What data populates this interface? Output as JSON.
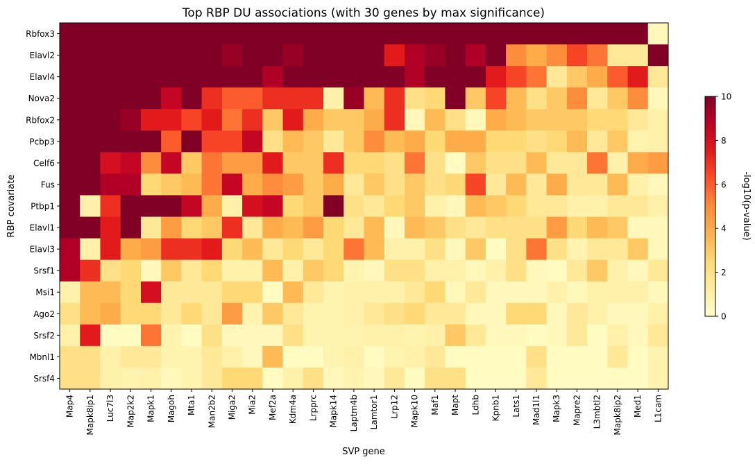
{
  "chart_data": {
    "type": "heatmap",
    "title": "Top RBP DU associations (with 30 genes by max significance)",
    "xlabel": "SVP gene",
    "ylabel": "RBP covariate",
    "colorbar_label": "-log10(p-value)",
    "colorbar_ticks": [
      0,
      2,
      4,
      6,
      8,
      10
    ],
    "vmin": 0,
    "vmax": 10,
    "colormap": "YlOrRd",
    "x_categories": [
      "Map4",
      "Mapk8ip1",
      "Luc7l3",
      "Map2k2",
      "Mapk1",
      "Magoh",
      "Mta1",
      "Man2b2",
      "Miga2",
      "Mia2",
      "Mef2a",
      "Kdm4a",
      "Lrpprc",
      "Mapk14",
      "Laptm4b",
      "Lamtor1",
      "Lrp12",
      "Mapk10",
      "Maf1",
      "Mapt",
      "Ldhb",
      "Kpnb1",
      "Lats1",
      "Mad1l1",
      "Mapk3",
      "Mapre2",
      "L3mbtl2",
      "Mapk8ip2",
      "Med1",
      "L1cam"
    ],
    "y_categories": [
      "Rbfox3",
      "Elavl2",
      "Elavl4",
      "Nova2",
      "Rbfox2",
      "Pcbp3",
      "Celf6",
      "Fus",
      "Ptbp1",
      "Elavl1",
      "Elavl3",
      "Srsf1",
      "Msi1",
      "Ago2",
      "Srsf2",
      "Mbnl1",
      "Srsf4"
    ],
    "values": [
      [
        10,
        10,
        10,
        10,
        10,
        10,
        10,
        10,
        10,
        10,
        10,
        10,
        10,
        10,
        10,
        10,
        10,
        10,
        10,
        10,
        10,
        10,
        10,
        10,
        10,
        10,
        10,
        10,
        10,
        0.5
      ],
      [
        10,
        10,
        10,
        10,
        10,
        10,
        10,
        10,
        9.5,
        10,
        10,
        9.5,
        10,
        10,
        10,
        10,
        7.5,
        9,
        9.5,
        10,
        9,
        10,
        5,
        4,
        5,
        6.5,
        5.5,
        1.5,
        1.5,
        10
      ],
      [
        10,
        10,
        10,
        10,
        10,
        10,
        10,
        10,
        10,
        10,
        9,
        10,
        10,
        10,
        10,
        10,
        10,
        9,
        10,
        10,
        10,
        7.5,
        6.5,
        5.5,
        1.5,
        3,
        4,
        6,
        7.5,
        1.5
      ],
      [
        10,
        10,
        10,
        10,
        10,
        8.5,
        10,
        7,
        6,
        6,
        7,
        7,
        7,
        1,
        9.5,
        3.5,
        7,
        2,
        2.5,
        10,
        3,
        6.5,
        3.5,
        2,
        3,
        5,
        1.5,
        3,
        5,
        0.5
      ],
      [
        10,
        10,
        10,
        9.5,
        7.5,
        7.5,
        6.5,
        7.5,
        5.5,
        7,
        3,
        7.5,
        4,
        3,
        3,
        4,
        7,
        0.5,
        3.5,
        2,
        0.5,
        4,
        3.5,
        3,
        3,
        3,
        2.5,
        2.5,
        1.5,
        1
      ],
      [
        10,
        10,
        10,
        10,
        10,
        6,
        10,
        6.5,
        6.5,
        8.5,
        2,
        3.5,
        3,
        1.5,
        3,
        5,
        3.5,
        4,
        2.5,
        4,
        4,
        2.5,
        2.5,
        2,
        2.5,
        3.5,
        1.5,
        3,
        0.8,
        1
      ],
      [
        10,
        10,
        8,
        8.5,
        5,
        8.5,
        3,
        5.5,
        4.5,
        4.5,
        7.5,
        3,
        3,
        7,
        2.5,
        2.5,
        2,
        5.5,
        2,
        0.3,
        3,
        2,
        2,
        3.5,
        1.5,
        1.5,
        5.5,
        1,
        4,
        4.5
      ],
      [
        10,
        10,
        9,
        9,
        2.5,
        3,
        3.5,
        5.5,
        8.5,
        4,
        5,
        4.5,
        3,
        4,
        1.5,
        3,
        2,
        3,
        2,
        2.5,
        6.5,
        1.5,
        3.5,
        1.5,
        4,
        1.5,
        1.5,
        3.5,
        1,
        0.5
      ],
      [
        10,
        1,
        7,
        10,
        10,
        10,
        8.5,
        4,
        1,
        8,
        8.5,
        2.5,
        3,
        10,
        2,
        1.5,
        2.5,
        3,
        1,
        0.5,
        3.5,
        3,
        2.5,
        1.5,
        1.5,
        1,
        1,
        1.5,
        1.5,
        1
      ],
      [
        10,
        10,
        7.5,
        10,
        1.5,
        4.5,
        2.5,
        3,
        7,
        1.5,
        4,
        3.5,
        4.5,
        2.5,
        1.5,
        3.5,
        0.5,
        3.5,
        3,
        2,
        1.5,
        2,
        2,
        2,
        4.5,
        2.5,
        3.5,
        3,
        0.5,
        0.5
      ],
      [
        9,
        1,
        7.5,
        4,
        4.5,
        7,
        7,
        7.5,
        2.5,
        3.5,
        1.5,
        2.5,
        1.5,
        2.5,
        5.5,
        3.5,
        1,
        1,
        2,
        0.5,
        3,
        0.3,
        2,
        5.5,
        2,
        0.8,
        1.5,
        1.5,
        3,
        0.5
      ],
      [
        9,
        7,
        2,
        2.5,
        0.5,
        3,
        1.5,
        2.5,
        1,
        1,
        3.5,
        1,
        3,
        2.5,
        0.8,
        0.5,
        2,
        2,
        1,
        1,
        0.5,
        1,
        2,
        0.5,
        0.3,
        1.5,
        3,
        1,
        0.5,
        1.5
      ],
      [
        1,
        3.5,
        3.5,
        2.5,
        8,
        1.5,
        1.5,
        1.5,
        2.5,
        2.5,
        0.3,
        3.5,
        1.5,
        0.8,
        1,
        1,
        1,
        1.5,
        2.5,
        0.5,
        1.5,
        0.5,
        0.5,
        0.5,
        1,
        0.5,
        1,
        1,
        1,
        0.5
      ],
      [
        2,
        3.5,
        4,
        2.5,
        2.5,
        1.5,
        2.5,
        1.5,
        4.5,
        0.8,
        3,
        1.5,
        0.8,
        0.8,
        1,
        1.5,
        2,
        2.5,
        1.5,
        1.5,
        0.5,
        0.5,
        2.5,
        2.5,
        0.5,
        1.5,
        1,
        0.5,
        0.5,
        1
      ],
      [
        1,
        7.5,
        0.3,
        0.3,
        5.5,
        0.8,
        0.3,
        2,
        0.5,
        0.5,
        0.5,
        2,
        0.8,
        0.8,
        0.8,
        1,
        1,
        0.8,
        1,
        3,
        1.5,
        0.5,
        0.5,
        0.3,
        0.5,
        1.5,
        0.3,
        1,
        0.5,
        1.5
      ],
      [
        2,
        2,
        1,
        1.5,
        1.5,
        0.8,
        0.8,
        1.5,
        1,
        0.5,
        3.5,
        0.3,
        0.3,
        0.8,
        1,
        0.3,
        0.8,
        1,
        1.5,
        0.3,
        0.3,
        0.3,
        0.3,
        2,
        0.3,
        0.3,
        0.3,
        1.5,
        0.3,
        0.8
      ],
      [
        2,
        2,
        1,
        0.8,
        1,
        0.5,
        0.8,
        1.5,
        2.5,
        2.5,
        0.3,
        1,
        2,
        0.5,
        0.8,
        0.5,
        1.5,
        0.3,
        2,
        2,
        0.3,
        0.3,
        0.3,
        1.5,
        0.3,
        0.3,
        0.3,
        0.3,
        0.3,
        0.8
      ]
    ]
  }
}
